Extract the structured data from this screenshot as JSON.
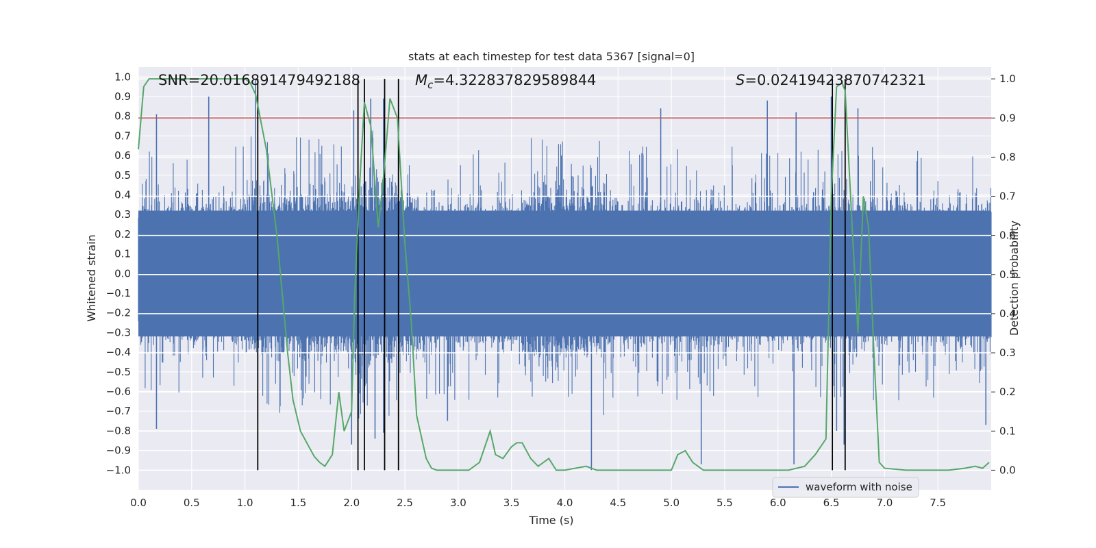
{
  "chart_data": {
    "type": "line",
    "title": "stats at each timestep for test data 5367 [signal=0]",
    "xlabel": "Time (s)",
    "ylabel": "Whitened strain",
    "y2label": "Detection probability",
    "xlim": [
      0.0,
      8.0
    ],
    "ylim": [
      -1.1,
      1.05
    ],
    "y2lim": [
      -0.05,
      1.03
    ],
    "x_ticks": [
      "0.0",
      "0.5",
      "1.0",
      "1.5",
      "2.0",
      "2.5",
      "3.0",
      "3.5",
      "4.0",
      "4.5",
      "5.0",
      "5.5",
      "6.0",
      "6.5",
      "7.0",
      "7.5"
    ],
    "y_ticks": [
      "1.0",
      "0.9",
      "0.8",
      "0.7",
      "0.6",
      "0.5",
      "0.4",
      "0.3",
      "0.2",
      "0.1",
      "0.0",
      "-0.1",
      "-0.2",
      "-0.3",
      "-0.4",
      "-0.5",
      "-0.6",
      "-0.7",
      "-0.8",
      "-0.9",
      "-1.0"
    ],
    "y2_ticks": [
      "1.0",
      "0.9",
      "0.8",
      "0.7",
      "0.6",
      "0.5",
      "0.4",
      "0.3",
      "0.2",
      "0.1",
      "0.0"
    ],
    "grid": true,
    "annotations": {
      "snr": "SNR=20.016891479492188",
      "mc_symbol": "M",
      "mc_subscript": "c",
      "mc_value": "=4.322837829589844",
      "s_symbol": "S",
      "s_value": "=0.02419423870742321"
    },
    "threshold_y2": 0.9,
    "vertical_lines_x": [
      1.12,
      2.06,
      2.12,
      2.31,
      2.44,
      6.51,
      6.63
    ],
    "legend": {
      "label": "waveform with noise",
      "location": "lower-right"
    },
    "colors": {
      "waveform": "#4c72b0",
      "probability": "#55a868",
      "threshold": "#c44e52",
      "event_lines": "#000000",
      "plot_background": "#eaeaf2",
      "grid": "#ffffff"
    },
    "series": [
      {
        "name": "waveform with noise",
        "axis": "left",
        "description_level": "noise envelope",
        "envelope_segments": [
          {
            "x": [
              0.0,
              8.0
            ],
            "dense_amplitude": 0.4
          },
          {
            "x": [
              1.0,
              2.6
            ],
            "dense_amplitude": 0.46
          },
          {
            "x": [
              2.0,
              2.5
            ],
            "dense_amplitude": 0.5
          },
          {
            "x": [
              3.6,
              4.4
            ],
            "dense_amplitude": 0.48
          }
        ],
        "spikes": [
          {
            "x": 0.17,
            "y": 0.81
          },
          {
            "x": 0.17,
            "y": -0.79
          },
          {
            "x": 0.66,
            "y": 0.9
          },
          {
            "x": 1.1,
            "y": 0.99
          },
          {
            "x": 2.0,
            "y": -0.87
          },
          {
            "x": 2.02,
            "y": 0.83
          },
          {
            "x": 2.18,
            "y": 0.89
          },
          {
            "x": 2.22,
            "y": -0.84
          },
          {
            "x": 2.3,
            "y": 0.89
          },
          {
            "x": 2.3,
            "y": -0.81
          },
          {
            "x": 2.44,
            "y": 0.78
          },
          {
            "x": 2.9,
            "y": -0.75
          },
          {
            "x": 4.25,
            "y": -1.0
          },
          {
            "x": 4.9,
            "y": 0.84
          },
          {
            "x": 5.28,
            "y": -0.97
          },
          {
            "x": 5.9,
            "y": 0.88
          },
          {
            "x": 6.15,
            "y": -0.97
          },
          {
            "x": 6.17,
            "y": 0.82
          },
          {
            "x": 6.5,
            "y": 0.9
          },
          {
            "x": 6.55,
            "y": -0.8
          },
          {
            "x": 6.62,
            "y": -0.87
          },
          {
            "x": 6.75,
            "y": 0.84
          },
          {
            "x": 7.95,
            "y": -0.77
          }
        ]
      },
      {
        "name": "detection probability",
        "axis": "right",
        "x": [
          0.0,
          0.05,
          0.1,
          0.2,
          0.6,
          0.8,
          1.0,
          1.05,
          1.1,
          1.2,
          1.3,
          1.4,
          1.45,
          1.52,
          1.6,
          1.65,
          1.7,
          1.75,
          1.82,
          1.88,
          1.93,
          2.0,
          2.03,
          2.08,
          2.12,
          2.18,
          2.25,
          2.3,
          2.36,
          2.43,
          2.5,
          2.56,
          2.61,
          2.7,
          2.75,
          2.8,
          3.0,
          3.1,
          3.2,
          3.3,
          3.35,
          3.42,
          3.5,
          3.55,
          3.6,
          3.68,
          3.75,
          3.85,
          3.92,
          4.0,
          4.2,
          4.3,
          4.5,
          5.0,
          5.06,
          5.13,
          5.2,
          5.3,
          5.5,
          5.7,
          6.1,
          6.25,
          6.35,
          6.45,
          6.5,
          6.55,
          6.6,
          6.63,
          6.7,
          6.75,
          6.8,
          6.85,
          6.9,
          6.95,
          7.0,
          7.2,
          7.5,
          7.6,
          7.75,
          7.85,
          7.92,
          7.98
        ],
        "y": [
          0.82,
          0.98,
          1.0,
          1.0,
          1.0,
          1.0,
          1.0,
          0.99,
          0.96,
          0.82,
          0.6,
          0.3,
          0.18,
          0.1,
          0.06,
          0.035,
          0.02,
          0.01,
          0.04,
          0.2,
          0.1,
          0.15,
          0.45,
          0.75,
          0.94,
          0.88,
          0.62,
          0.75,
          0.95,
          0.9,
          0.58,
          0.38,
          0.14,
          0.03,
          0.005,
          0.0,
          0.0,
          0.0,
          0.02,
          0.1,
          0.04,
          0.03,
          0.06,
          0.07,
          0.07,
          0.03,
          0.01,
          0.03,
          0.0,
          0.0,
          0.01,
          0.0,
          0.0,
          0.0,
          0.04,
          0.05,
          0.02,
          0.0,
          0.0,
          0.0,
          0.0,
          0.01,
          0.04,
          0.08,
          0.7,
          0.98,
          0.99,
          0.97,
          0.6,
          0.35,
          0.7,
          0.62,
          0.3,
          0.02,
          0.005,
          0.0,
          0.0,
          0.0,
          0.005,
          0.01,
          0.005,
          0.02
        ]
      }
    ]
  }
}
